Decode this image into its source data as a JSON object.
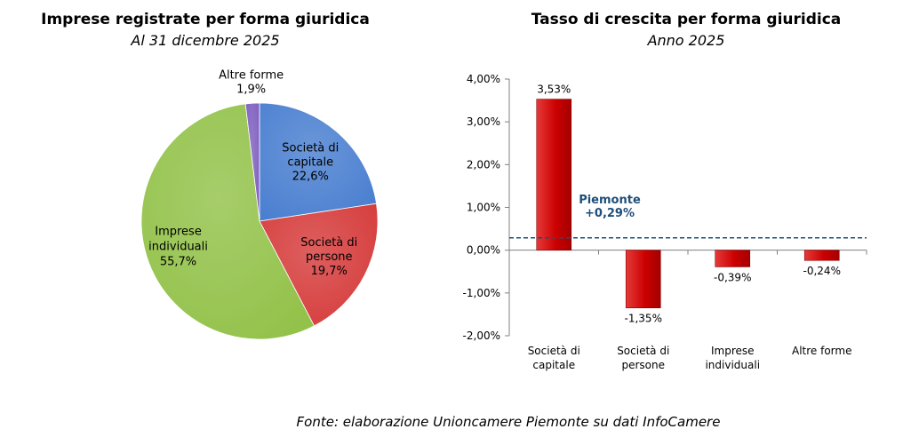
{
  "source": "Fonte: elaborazione Unioncamere Piemonte su dati InfoCamere",
  "colors": {
    "pie": [
      "#4a7fd0",
      "#d63c3c",
      "#93c24a",
      "#7f5fbf"
    ],
    "bar": "#cc0000",
    "reference": "#1f4e79"
  },
  "chart_data": [
    {
      "type": "pie",
      "title": "Imprese registrate per forma giuridica",
      "subtitle": "Al 31 dicembre 2025",
      "slices": [
        {
          "label": [
            "Società di",
            "capitale"
          ],
          "value": 22.6,
          "value_label": "22,6%"
        },
        {
          "label": [
            "Società di",
            "persone"
          ],
          "value": 19.7,
          "value_label": "19,7%"
        },
        {
          "label": [
            "Imprese",
            "individuali"
          ],
          "value": 55.7,
          "value_label": "55,7%"
        },
        {
          "label": [
            "Altre forme"
          ],
          "value": 1.9,
          "value_label": "1,9%"
        }
      ]
    },
    {
      "type": "bar",
      "title": "Tasso di crescita per forma giuridica",
      "subtitle": "Anno 2025",
      "categories": [
        [
          "Società di",
          "capitale"
        ],
        [
          "Società di",
          "persone"
        ],
        [
          "Imprese",
          "individuali"
        ],
        [
          "Altre forme"
        ]
      ],
      "values": [
        3.53,
        -1.35,
        -0.39,
        -0.24
      ],
      "value_labels": [
        "3,53%",
        "-1,35%",
        "-0,39%",
        "-0,24%"
      ],
      "ylim": [
        -2,
        4
      ],
      "yticks": [
        4,
        3,
        2,
        1,
        0,
        -1,
        -2
      ],
      "ytick_labels": [
        "4,00%",
        "3,00%",
        "2,00%",
        "1,00%",
        "0,00%",
        "-1,00%",
        "-2,00%"
      ],
      "reference_line": {
        "label": [
          "Piemonte",
          "+0,29%"
        ],
        "value": 0.29
      }
    }
  ]
}
